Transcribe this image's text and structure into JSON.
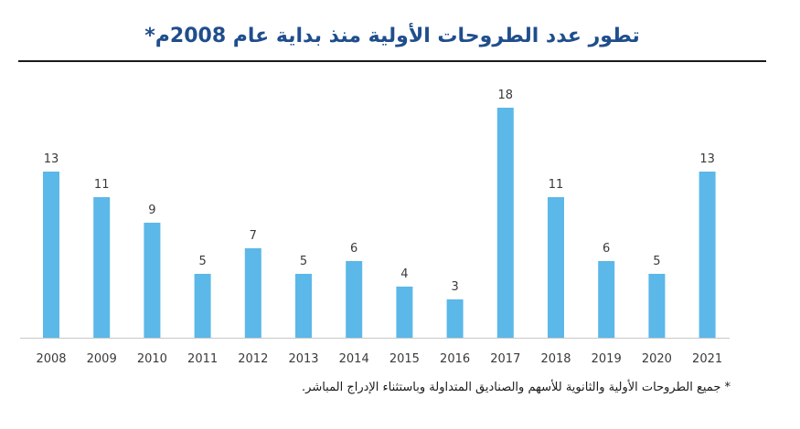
{
  "title": "تطور عدد الطروحات الأولية منذ بداية عام 2008م*",
  "footnote": "* جميع الطروحات الأولية والثانوية للأسهم والصناديق المتداولة وباستثناء الإدراج المباشر.",
  "colors": {
    "bar": "#5bb8e8",
    "title": "#1f4e8c",
    "text": "#3a3a3a",
    "axis": "#c8c8c8"
  },
  "chart_data": {
    "type": "bar",
    "categories": [
      "2008",
      "2009",
      "2010",
      "2011",
      "2012",
      "2013",
      "2014",
      "2015",
      "2016",
      "2017",
      "2018",
      "2019",
      "2020",
      "2021"
    ],
    "values": [
      13,
      11,
      9,
      5,
      7,
      5,
      6,
      4,
      3,
      18,
      11,
      6,
      5,
      13
    ],
    "title": "تطور عدد الطروحات الأولية منذ بداية عام 2008م*",
    "xlabel": "",
    "ylabel": "",
    "ylim": [
      0,
      18
    ],
    "grid": false,
    "legend": "none",
    "data_labels": true
  }
}
